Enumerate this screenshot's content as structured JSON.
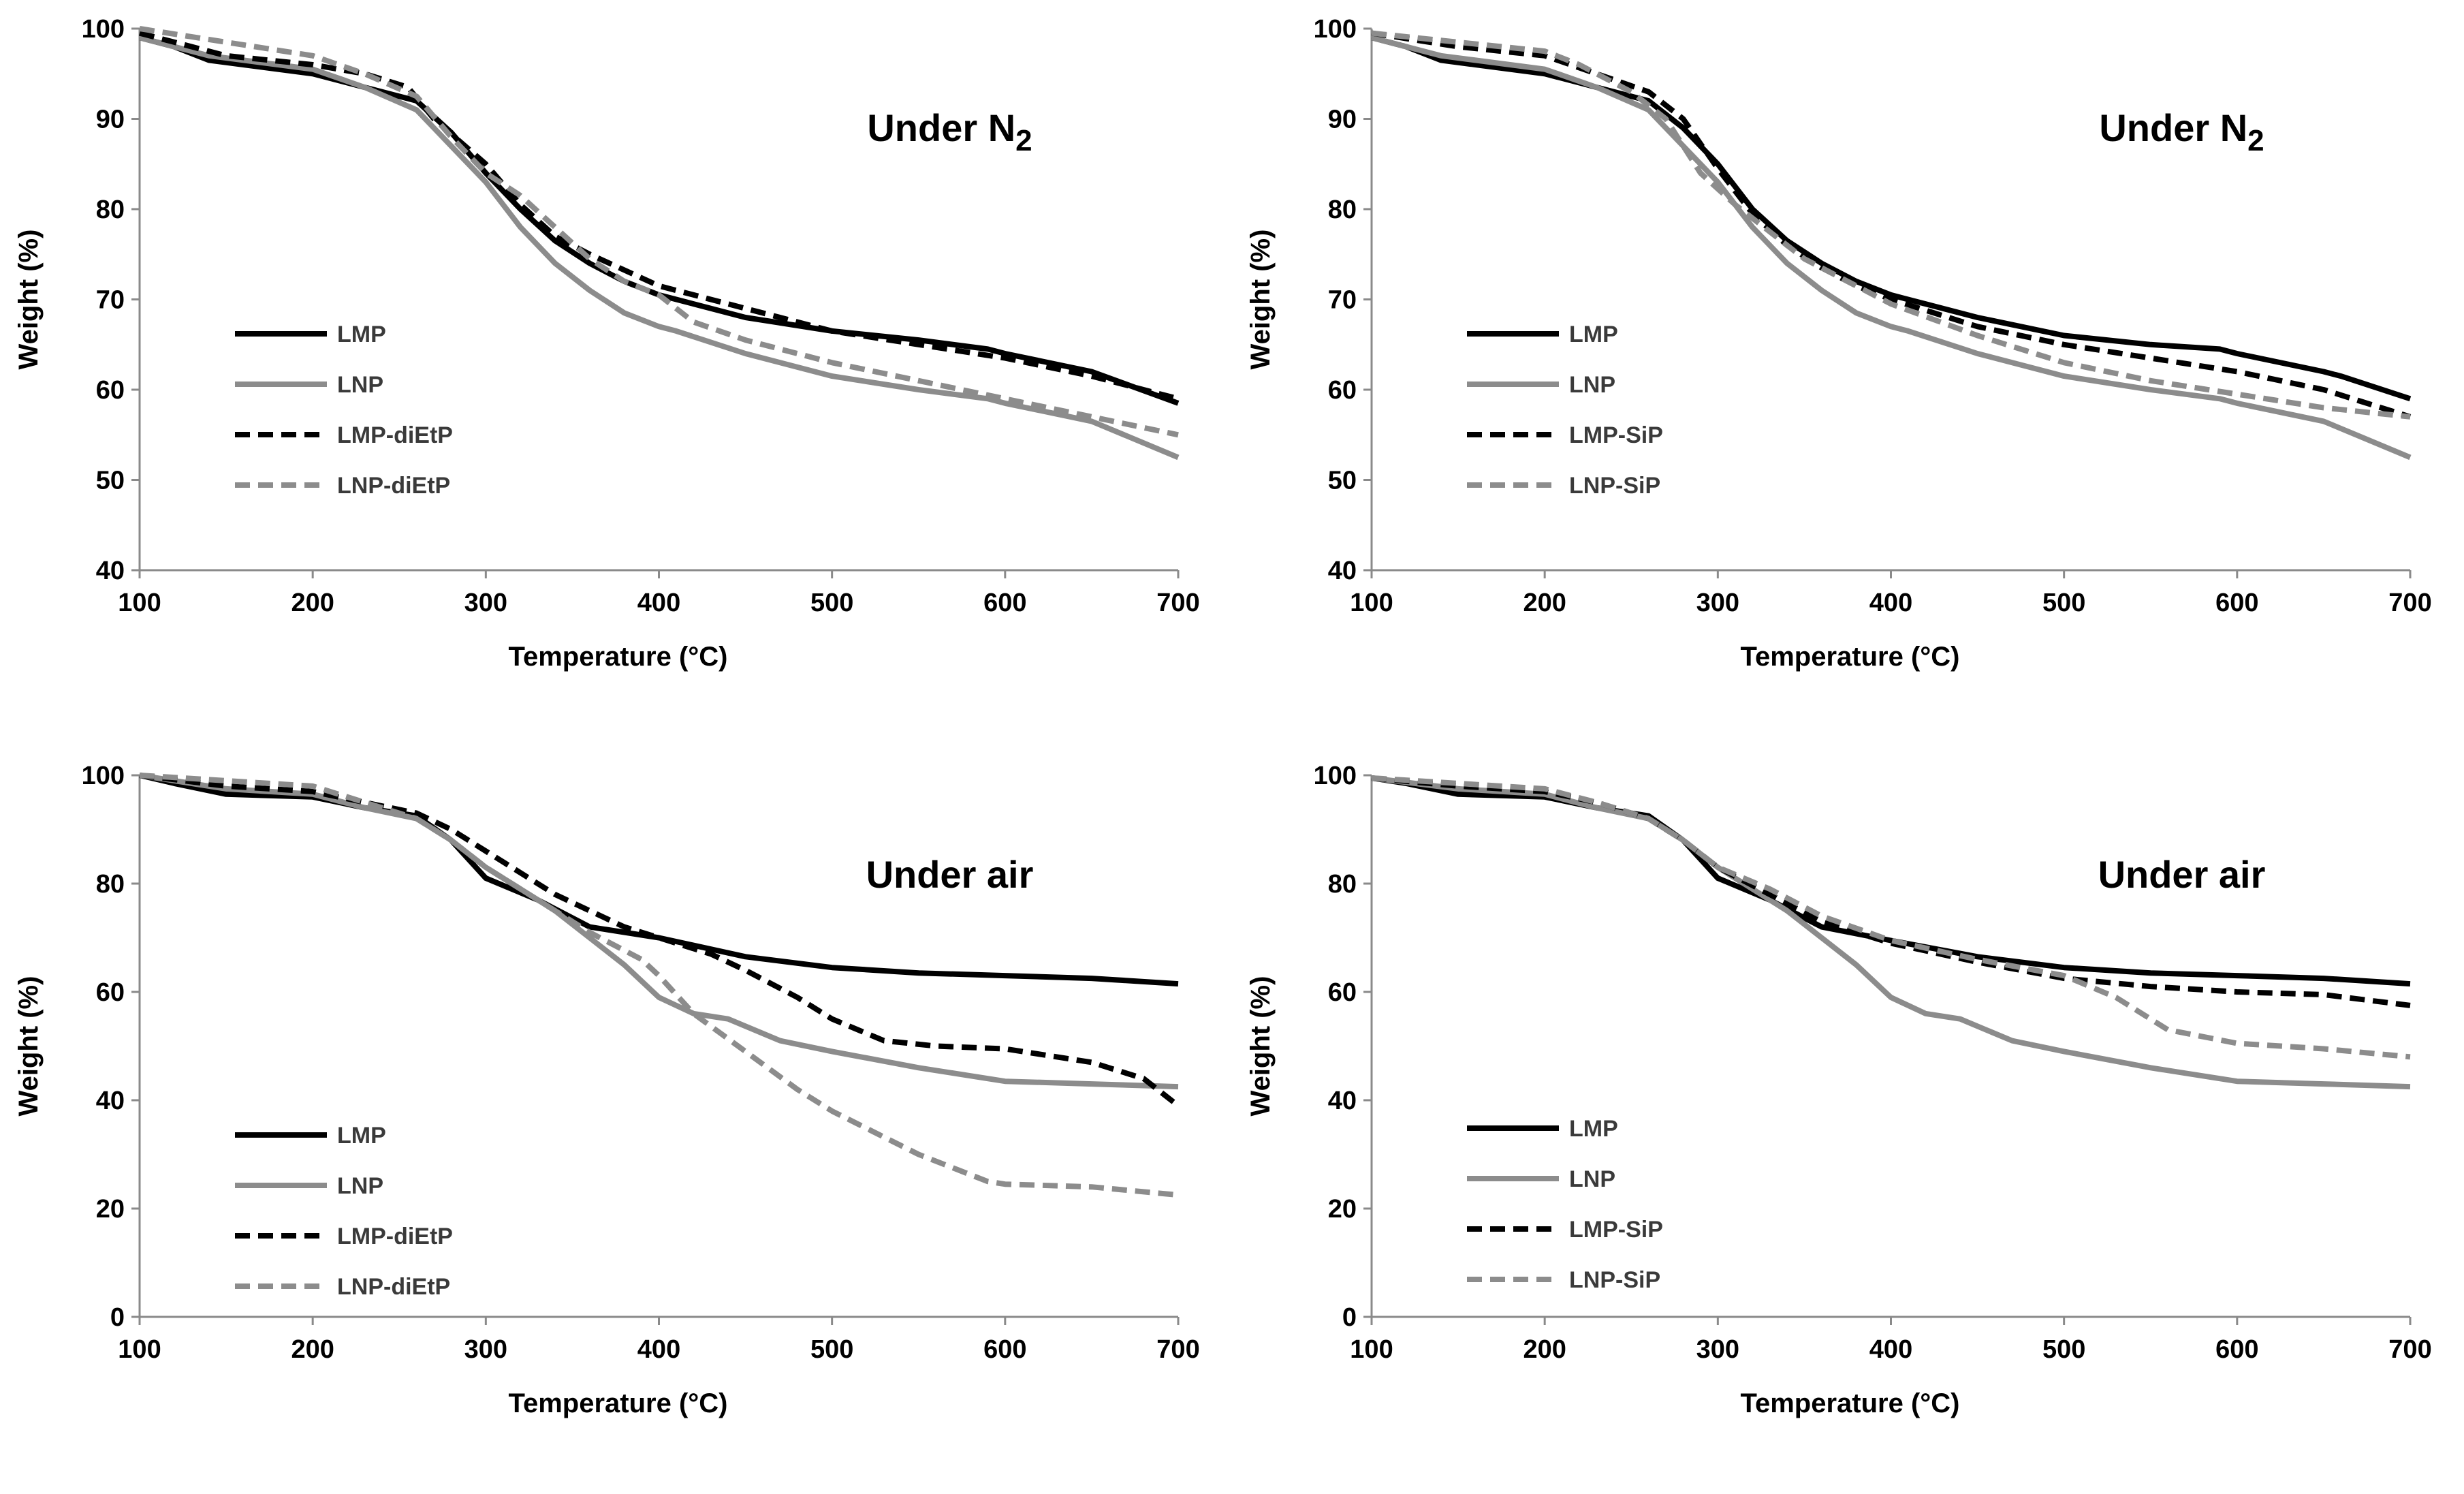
{
  "chart_data": [
    {
      "type": "line",
      "title": "Under N",
      "title_subscript": "2",
      "xlabel": "Temperature (°C)",
      "ylabel": "Weight (%)",
      "xlim": [
        100,
        700
      ],
      "ylim": [
        40,
        100
      ],
      "xticks": [
        100,
        200,
        300,
        400,
        500,
        600,
        700
      ],
      "yticks": [
        40,
        50,
        60,
        70,
        80,
        90,
        100
      ],
      "legend": "left-middle",
      "grid": false,
      "series": [
        {
          "name": "LMP",
          "color": "#000000",
          "dash": false,
          "x": [
            100,
            120,
            140,
            160,
            200,
            230,
            260,
            280,
            300,
            320,
            340,
            360,
            380,
            400,
            420,
            450,
            500,
            550,
            590,
            600,
            650,
            700
          ],
          "y": [
            99,
            98,
            96.5,
            96,
            95,
            93.5,
            92,
            88.5,
            84,
            80,
            76.5,
            74,
            72,
            70.5,
            69.5,
            68,
            66.5,
            65.5,
            64.5,
            64,
            62,
            58.5
          ]
        },
        {
          "name": "LNP",
          "color": "#8c8c8c",
          "dash": false,
          "x": [
            100,
            120,
            140,
            160,
            200,
            230,
            260,
            280,
            300,
            320,
            340,
            360,
            380,
            400,
            410,
            450,
            500,
            550,
            590,
            600,
            650,
            700
          ],
          "y": [
            99,
            98,
            97,
            96.5,
            95.5,
            93.5,
            91,
            87,
            83,
            78,
            74,
            71,
            68.5,
            67,
            66.5,
            64,
            61.5,
            60,
            59,
            58.5,
            56.5,
            52.5
          ]
        },
        {
          "name": "LMP-diEtP",
          "color": "#000000",
          "dash": true,
          "x": [
            100,
            150,
            200,
            230,
            255,
            270,
            300,
            320,
            340,
            360,
            400,
            450,
            500,
            550,
            600,
            650,
            700
          ],
          "y": [
            99.5,
            97,
            96,
            95,
            93.5,
            90,
            85,
            80.5,
            77,
            75,
            71.5,
            69,
            66.5,
            65,
            63.5,
            61.5,
            59
          ]
        },
        {
          "name": "LNP-diEtP",
          "color": "#8c8c8c",
          "dash": true,
          "x": [
            100,
            150,
            200,
            230,
            260,
            280,
            300,
            320,
            340,
            360,
            380,
            400,
            420,
            450,
            500,
            550,
            600,
            650,
            700
          ],
          "y": [
            100,
            98.5,
            97,
            95,
            92.5,
            88,
            84,
            81.5,
            78,
            74.5,
            72,
            70.5,
            67.5,
            65.5,
            63,
            61,
            59,
            57,
            55
          ]
        }
      ]
    },
    {
      "type": "line",
      "title": "Under N",
      "title_subscript": "2",
      "xlabel": "Temperature (°C)",
      "ylabel": "Weight (%)",
      "xlim": [
        100,
        700
      ],
      "ylim": [
        40,
        100
      ],
      "xticks": [
        100,
        200,
        300,
        400,
        500,
        600,
        700
      ],
      "yticks": [
        40,
        50,
        60,
        70,
        80,
        90,
        100
      ],
      "legend": "left-middle",
      "grid": false,
      "series": [
        {
          "name": "LMP",
          "color": "#000000",
          "dash": false,
          "x": [
            100,
            120,
            140,
            160,
            200,
            230,
            260,
            280,
            300,
            320,
            340,
            360,
            380,
            400,
            420,
            450,
            500,
            550,
            590,
            600,
            650,
            660,
            700
          ],
          "y": [
            99,
            98,
            96.5,
            96,
            95,
            93.5,
            92,
            89,
            85,
            80,
            76.5,
            74,
            72,
            70.5,
            69.5,
            68,
            66,
            65,
            64.5,
            64,
            62,
            61.5,
            59
          ]
        },
        {
          "name": "LNP",
          "color": "#8c8c8c",
          "dash": false,
          "x": [
            100,
            120,
            140,
            160,
            200,
            230,
            260,
            280,
            300,
            320,
            340,
            360,
            380,
            400,
            410,
            450,
            500,
            550,
            590,
            600,
            650,
            700
          ],
          "y": [
            99,
            98,
            97,
            96.5,
            95.5,
            93.5,
            91,
            87,
            83,
            78,
            74,
            71,
            68.5,
            67,
            66.5,
            64,
            61.5,
            60,
            59,
            58.5,
            56.5,
            52.5
          ]
        },
        {
          "name": "LMP-SiP",
          "color": "#000000",
          "dash": true,
          "x": [
            100,
            150,
            200,
            230,
            260,
            280,
            300,
            320,
            340,
            360,
            380,
            400,
            450,
            500,
            550,
            600,
            650,
            700
          ],
          "y": [
            99.5,
            98,
            97,
            95,
            93,
            90,
            84.5,
            79.5,
            76,
            73.5,
            71.5,
            70,
            67,
            65,
            63.5,
            62,
            60,
            57
          ]
        },
        {
          "name": "LNP-SiP",
          "color": "#8c8c8c",
          "dash": true,
          "x": [
            100,
            150,
            200,
            220,
            250,
            270,
            290,
            310,
            330,
            350,
            400,
            450,
            500,
            550,
            600,
            650,
            700
          ],
          "y": [
            99.5,
            98.5,
            97.5,
            96,
            93,
            90,
            84,
            80.5,
            77.5,
            74.5,
            69.5,
            66,
            63,
            61,
            59.5,
            58,
            57
          ]
        }
      ]
    },
    {
      "type": "line",
      "title": "Under air",
      "title_subscript": "",
      "xlabel": "Temperature (°C)",
      "ylabel": "Weight (%)",
      "xlim": [
        100,
        700
      ],
      "ylim": [
        0,
        100
      ],
      "xticks": [
        100,
        200,
        300,
        400,
        500,
        600,
        700
      ],
      "yticks": [
        0,
        20,
        40,
        60,
        80,
        100
      ],
      "legend": "left-bottom",
      "grid": false,
      "series": [
        {
          "name": "LMP",
          "color": "#000000",
          "dash": false,
          "x": [
            100,
            120,
            150,
            200,
            230,
            260,
            280,
            300,
            330,
            360,
            400,
            450,
            500,
            550,
            600,
            650,
            700
          ],
          "y": [
            100,
            98.5,
            96.5,
            96,
            94,
            92.5,
            88,
            81,
            77,
            72,
            70,
            66.5,
            64.5,
            63.5,
            63,
            62.5,
            61.5
          ]
        },
        {
          "name": "LNP",
          "color": "#8c8c8c",
          "dash": false,
          "x": [
            100,
            150,
            200,
            230,
            260,
            280,
            300,
            320,
            340,
            360,
            380,
            400,
            420,
            440,
            470,
            500,
            550,
            600,
            650,
            700
          ],
          "y": [
            100,
            97.5,
            96.5,
            94,
            92,
            88,
            83,
            79,
            75,
            70,
            65,
            59,
            56,
            55,
            51,
            49,
            46,
            43.5,
            43,
            42.5
          ]
        },
        {
          "name": "LMP-diEtP",
          "color": "#000000",
          "dash": true,
          "x": [
            100,
            150,
            200,
            230,
            260,
            280,
            300,
            320,
            340,
            360,
            380,
            400,
            430,
            450,
            480,
            500,
            530,
            560,
            600,
            650,
            680,
            700
          ],
          "y": [
            100,
            98,
            97,
            95,
            93,
            90,
            86,
            82,
            78,
            75,
            72,
            70,
            67,
            64,
            59,
            55,
            51,
            50,
            49.5,
            47,
            44,
            39
          ]
        },
        {
          "name": "LNP-diEtP",
          "color": "#8c8c8c",
          "dash": true,
          "x": [
            100,
            150,
            200,
            230,
            260,
            280,
            300,
            330,
            360,
            390,
            400,
            420,
            450,
            480,
            500,
            550,
            590,
            600,
            650,
            700
          ],
          "y": [
            100,
            99,
            98,
            95,
            92,
            88,
            83,
            77,
            71,
            66,
            63,
            56,
            49,
            42,
            38,
            30,
            25,
            24.5,
            24,
            22.5
          ]
        }
      ]
    },
    {
      "type": "line",
      "title": "Under air",
      "title_subscript": "",
      "xlabel": "Temperature (°C)",
      "ylabel": "Weight (%)",
      "xlim": [
        100,
        700
      ],
      "ylim": [
        0,
        100
      ],
      "xticks": [
        100,
        200,
        300,
        400,
        500,
        600,
        700
      ],
      "yticks": [
        0,
        20,
        40,
        60,
        80,
        100
      ],
      "legend": "left-bottom",
      "grid": false,
      "series": [
        {
          "name": "LMP",
          "color": "#000000",
          "dash": false,
          "x": [
            100,
            120,
            150,
            200,
            230,
            260,
            280,
            300,
            330,
            360,
            400,
            450,
            500,
            550,
            600,
            650,
            700
          ],
          "y": [
            99.5,
            98.5,
            96.5,
            96,
            94,
            92.5,
            88,
            81,
            77,
            72,
            69.5,
            66.5,
            64.5,
            63.5,
            63,
            62.5,
            61.5
          ]
        },
        {
          "name": "LNP",
          "color": "#8c8c8c",
          "dash": false,
          "x": [
            100,
            150,
            200,
            230,
            260,
            280,
            300,
            320,
            340,
            360,
            380,
            400,
            420,
            440,
            470,
            500,
            550,
            600,
            650,
            700
          ],
          "y": [
            99.5,
            97.5,
            96.5,
            94,
            92,
            88,
            83,
            79,
            75,
            70,
            65,
            59,
            56,
            55,
            51,
            49,
            46,
            43.5,
            43,
            42.5
          ]
        },
        {
          "name": "LMP-SiP",
          "color": "#000000",
          "dash": true,
          "x": [
            100,
            150,
            200,
            230,
            260,
            280,
            300,
            330,
            360,
            400,
            450,
            500,
            550,
            600,
            650,
            700
          ],
          "y": [
            99.5,
            98,
            97,
            95,
            92,
            88,
            83,
            78,
            73,
            69,
            65.5,
            62.5,
            61,
            60,
            59.5,
            57.5
          ]
        },
        {
          "name": "LNP-SiP",
          "color": "#8c8c8c",
          "dash": true,
          "x": [
            100,
            150,
            200,
            230,
            260,
            280,
            300,
            330,
            360,
            400,
            450,
            500,
            530,
            560,
            600,
            650,
            700
          ],
          "y": [
            99.5,
            98.5,
            97.5,
            95,
            92,
            88,
            83,
            79,
            74,
            69.5,
            66,
            63,
            59,
            53,
            50.5,
            49.5,
            48
          ]
        }
      ]
    }
  ]
}
